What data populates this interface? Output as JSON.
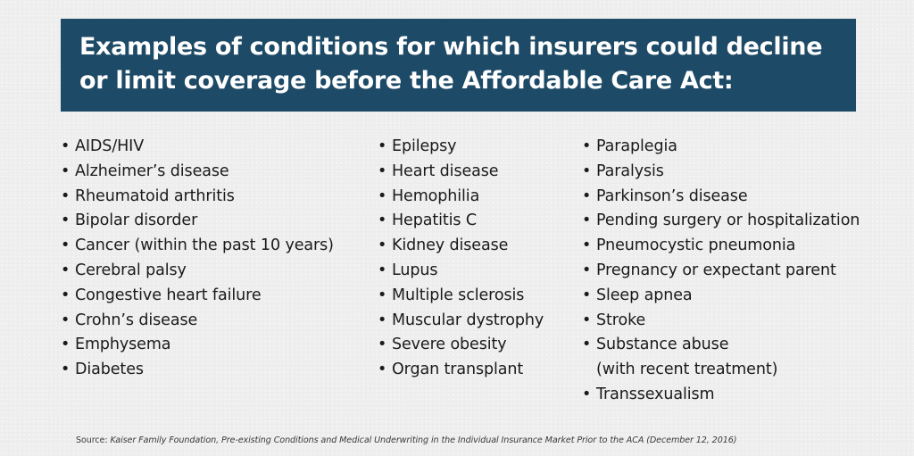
{
  "header": {
    "title_line_1": "Examples of conditions for which insurers could decline",
    "title_line_2": "or limit coverage before the Affordable Care Act:"
  },
  "bullet_glyph": "•",
  "columns": [
    {
      "items": [
        {
          "text": "AIDS/HIV"
        },
        {
          "text": "Alzheimer’s disease"
        },
        {
          "text": "Rheumatoid arthritis"
        },
        {
          "text": "Bipolar disorder"
        },
        {
          "text": "Cancer (within the past 10 years)"
        },
        {
          "text": "Cerebral palsy"
        },
        {
          "text": "Congestive heart failure"
        },
        {
          "text": "Crohn’s disease"
        },
        {
          "text": "Emphysema"
        },
        {
          "text": "Diabetes"
        }
      ]
    },
    {
      "items": [
        {
          "text": "Epilepsy"
        },
        {
          "text": "Heart disease"
        },
        {
          "text": "Hemophilia"
        },
        {
          "text": "Hepatitis C"
        },
        {
          "text": "Kidney disease"
        },
        {
          "text": "Lupus"
        },
        {
          "text": "Multiple sclerosis"
        },
        {
          "text": "Muscular dystrophy"
        },
        {
          "text": "Severe obesity"
        },
        {
          "text": "Organ transplant"
        }
      ]
    },
    {
      "items": [
        {
          "text": "Paraplegia"
        },
        {
          "text": "Paralysis"
        },
        {
          "text": "Parkinson’s disease"
        },
        {
          "text": "Pending surgery or hospitalization"
        },
        {
          "text": "Pneumocystic pneumonia"
        },
        {
          "text": "Pregnancy or expectant parent"
        },
        {
          "text": "Sleep apnea"
        },
        {
          "text": "Stroke"
        },
        {
          "text": "Substance abuse",
          "continuation": "(with recent treatment)"
        },
        {
          "text": "Transsexualism"
        }
      ]
    }
  ],
  "footer": {
    "source_label": "Source: ",
    "source_text": " Kaiser Family Foundation, Pre-existing Conditions and Medical Underwriting in the Individual Insurance Market Prior to the ACA (December 12, 2016)"
  },
  "colors": {
    "banner_background": "#1d4a66",
    "banner_text": "#ffffff",
    "body_text": "#1a1a1a",
    "page_background": "#efefef"
  }
}
